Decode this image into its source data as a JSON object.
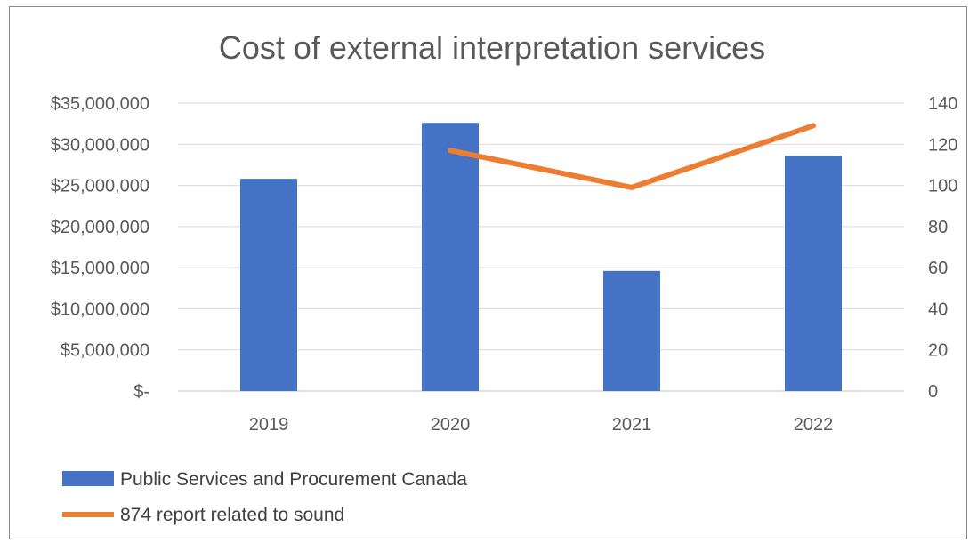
{
  "chart_data": {
    "type": "bar",
    "title": "Cost of external interpretation services",
    "categories": [
      "2019",
      "2020",
      "2021",
      "2022"
    ],
    "series": [
      {
        "name": "Public Services and Procurement Canada",
        "type": "bar",
        "axis": "left",
        "color": "#4472C4",
        "values": [
          25800000,
          32600000,
          14600000,
          28600000
        ]
      },
      {
        "name": "874 report related to sound",
        "type": "line",
        "axis": "right",
        "color": "#ED7D31",
        "values": [
          null,
          117,
          99,
          129
        ]
      }
    ],
    "y_left": {
      "min": 0,
      "max": 35000000,
      "tick_labels": [
        "$-",
        "$5,000,000",
        "$10,000,000",
        "$15,000,000",
        "$20,000,000",
        "$25,000,000",
        "$30,000,000",
        "$35,000,000"
      ]
    },
    "y_right": {
      "min": 0,
      "max": 140,
      "tick_labels": [
        "0",
        "20",
        "40",
        "60",
        "80",
        "100",
        "120",
        "140"
      ]
    },
    "grid": true,
    "legend": "bottom-left"
  }
}
